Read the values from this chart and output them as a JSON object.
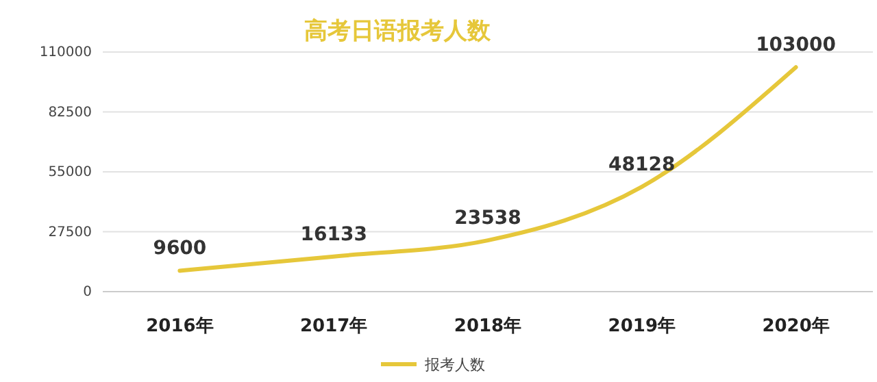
{
  "chart_data": {
    "type": "line",
    "title": "高考日语报考人数",
    "categories": [
      "2016年",
      "2017年",
      "2018年",
      "2019年",
      "2020年"
    ],
    "series": [
      {
        "name": "报考人数",
        "color": "#e6c73a",
        "values": [
          9600,
          16133,
          23538,
          48128,
          103000
        ]
      }
    ],
    "ylim": [
      0,
      110000
    ],
    "yticks": [
      0,
      27500,
      55000,
      82500,
      110000
    ],
    "grid": "y",
    "data_labels": true,
    "legend": "bottom"
  }
}
